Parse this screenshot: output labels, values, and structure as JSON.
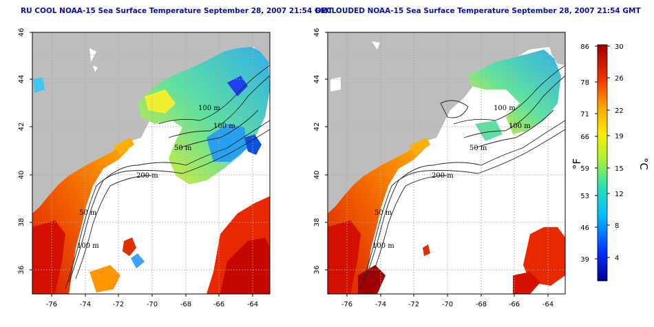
{
  "panels": [
    {
      "title": "RU COOL NOAA-15 Sea Surface Temperature September 28, 2007 21:54 GMT",
      "contour_labels": [
        "100 m",
        "100 m",
        "50 m",
        "200 m",
        "50 m",
        "100 m"
      ]
    },
    {
      "title": "DECLOUDED NOAA-15 Sea Surface Temperature September 28, 2007 21:54 GMT",
      "contour_labels": [
        "100 m",
        "100 m",
        "50 m",
        "200 m",
        "50 m",
        "100 m"
      ]
    }
  ],
  "axes": {
    "lon_ticks": [
      "-76",
      "-74",
      "-72",
      "-70",
      "-68",
      "-66",
      "-64"
    ],
    "lat_ticks": [
      "36",
      "38",
      "40",
      "42",
      "44",
      "46"
    ]
  },
  "colorbar": {
    "fahrenheit_label": "°F",
    "celsius_label": "°C",
    "fahrenheit_ticks": [
      "86",
      "78",
      "71",
      "66",
      "59",
      "53",
      "46",
      "39"
    ],
    "celsius_ticks": [
      "30",
      "26",
      "22",
      "19",
      "15",
      "12",
      "8",
      "4"
    ]
  },
  "colors": {
    "land": "#bdbdbd",
    "title": "#0a10a6",
    "grid": "#b0b0b0"
  }
}
